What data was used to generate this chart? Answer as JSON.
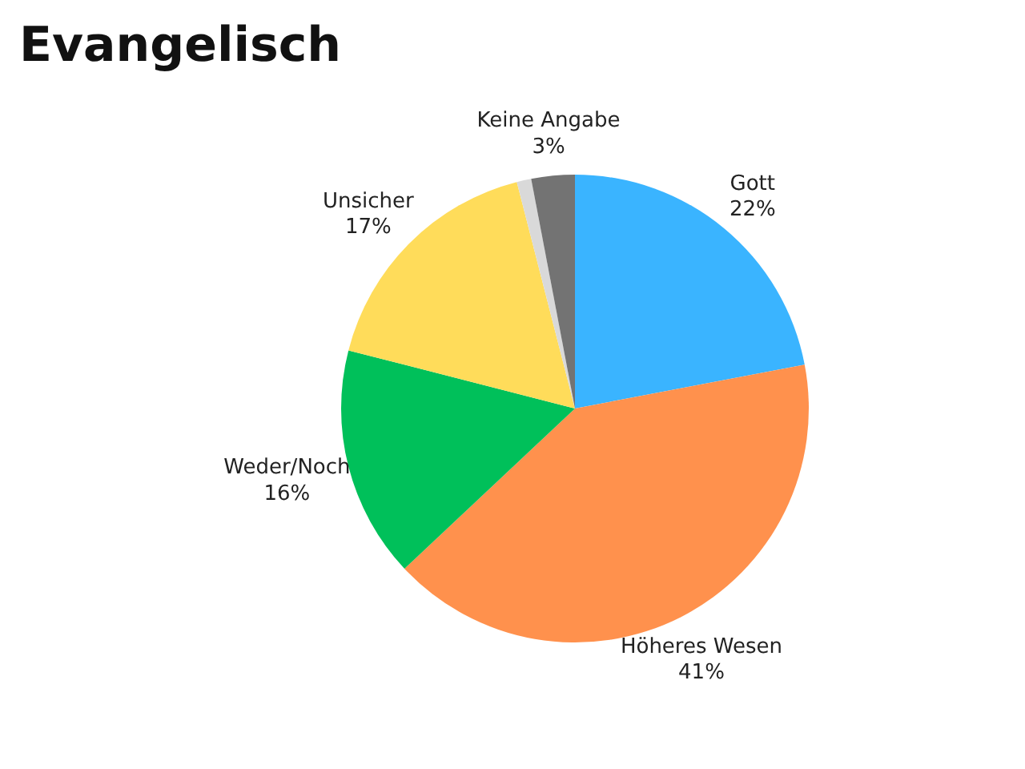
{
  "chart_data": {
    "type": "pie",
    "title": "Evangelisch",
    "categories": [
      "Gott",
      "Höheres Wesen",
      "Weder/Noch",
      "Unsicher",
      null,
      "Keine Angabe"
    ],
    "values": [
      22,
      41,
      16,
      17,
      1,
      3
    ],
    "colors": [
      "#3ab4ff",
      "#ff914d",
      "#00c05a",
      "#ffdc5a",
      "#d9d9d9",
      "#737373"
    ],
    "value_labels": [
      "22%",
      "41%",
      "16%",
      "17%",
      null,
      "3%"
    ]
  }
}
